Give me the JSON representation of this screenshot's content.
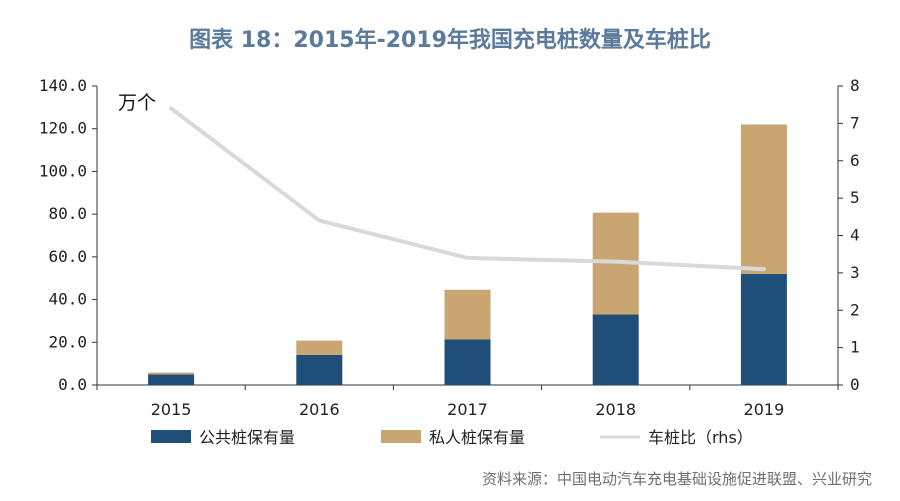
{
  "title": "图表 18：2015年-2019年我国充电桩数量及车桩比",
  "source": "资料来源：中国电动汽车充电基础设施促进联盟、兴业研究",
  "chart_data": {
    "type": "bar",
    "stacked": true,
    "title": "图表 18：2015年-2019年我国充电桩数量及车桩比",
    "unit_label": "万个",
    "categories": [
      "2015",
      "2016",
      "2017",
      "2018",
      "2019"
    ],
    "ylim_left": [
      0,
      140
    ],
    "ylim_right": [
      0,
      8
    ],
    "left_ticks": [
      "0.0",
      "20.0",
      "40.0",
      "60.0",
      "80.0",
      "100.0",
      "120.0",
      "140.0"
    ],
    "right_ticks": [
      "0",
      "1",
      "2",
      "3",
      "4",
      "5",
      "6",
      "7",
      "8"
    ],
    "series": [
      {
        "name": "公共桩保有量",
        "type": "bar",
        "axis": "left",
        "color": "#1f4e79",
        "values": [
          4.9,
          14.1,
          21.4,
          33.0,
          52.0
        ]
      },
      {
        "name": "私人桩保有量",
        "type": "bar",
        "axis": "left",
        "color": "#c9a571",
        "values": [
          0.9,
          6.7,
          23.2,
          47.7,
          70.0
        ]
      },
      {
        "name": "车桩比（rhs）",
        "type": "line",
        "axis": "right",
        "color": "#d9d9d9",
        "values": [
          7.4,
          4.4,
          3.4,
          3.3,
          3.1
        ]
      }
    ],
    "grid": false,
    "legend_position": "bottom"
  }
}
